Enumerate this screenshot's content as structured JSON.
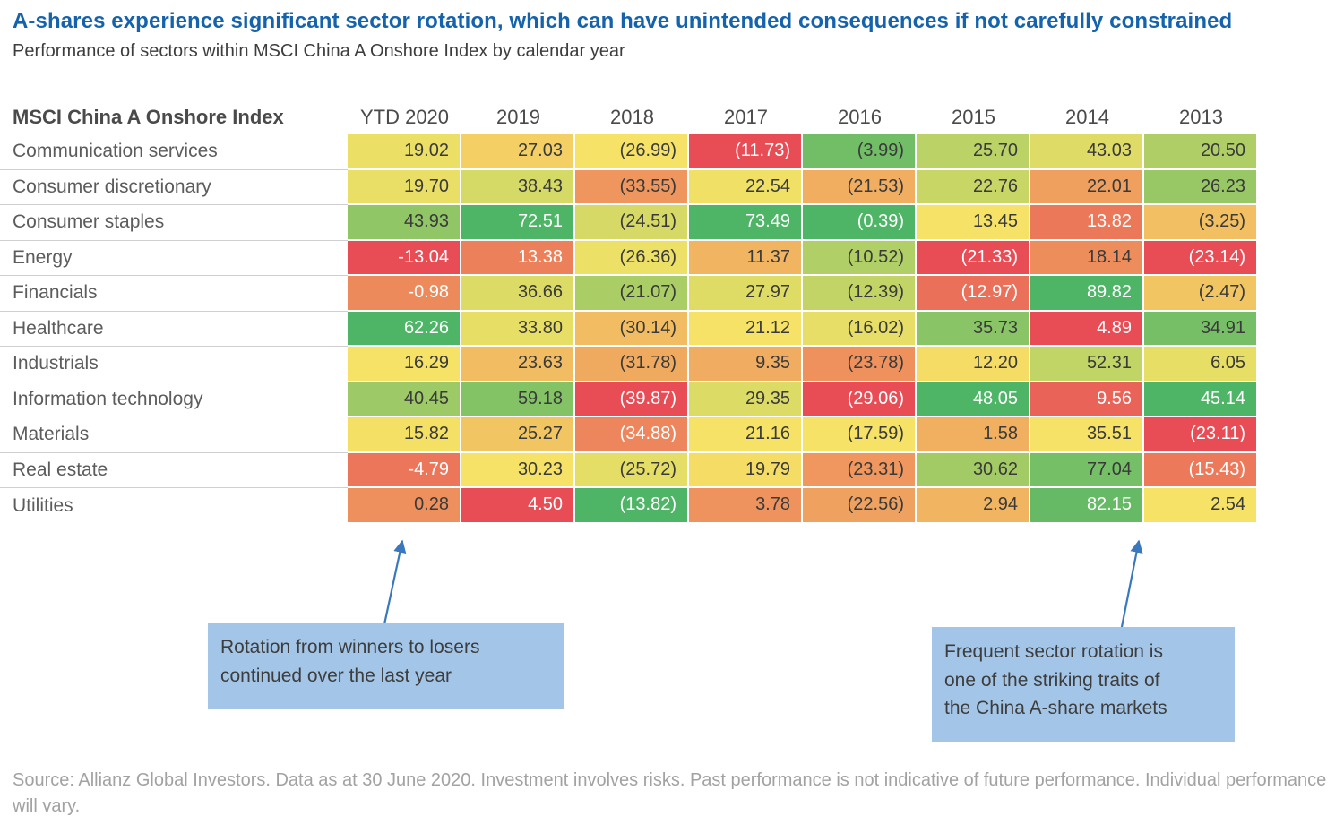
{
  "page": {
    "title": "A-shares experience significant sector rotation, which can have unintended consequences if not carefully constrained",
    "subtitle": "Performance of sectors within MSCI China A Onshore Index by calendar year",
    "footer": "Source: Allianz Global Investors. Data as at 30 June 2020. Investment involves risks. Past performance is not indicative of future performance. Individual performance will vary."
  },
  "annotations": [
    {
      "text": "Rotation from winners to losers\ncontinued over the last year",
      "points_to": "YTD 2020 column"
    },
    {
      "text": "Frequent sector rotation is\none of the striking traits of\nthe China A-share markets",
      "points_to": "2014 column"
    }
  ],
  "colors": {
    "title": "#1563ac",
    "subtitle_text": "#3d3d3d",
    "header_text": "#4a4a4a",
    "row_label_text": "#5c5c5c",
    "cell_text_dark": "#3a3a3a",
    "cell_text_light": "#ffffff",
    "separator": "#cfcfcf",
    "annotation_bg": "#a3c6e8",
    "annotation_text": "#3d3d3d",
    "arrow": "#3a78bd",
    "footer_text": "#a2a2a2",
    "scale_min": "#e84c55",
    "scale_mid": "#f5e266",
    "scale_max": "#4eb466"
  },
  "chart_data": {
    "type": "heatmap",
    "title": "Performance of sectors within MSCI China A Onshore Index by calendar year",
    "corner_label": "MSCI China A Onshore Index",
    "columns": [
      "YTD 2020",
      "2019",
      "2018",
      "2017",
      "2016",
      "2015",
      "2014",
      "2013"
    ],
    "negative_display": [
      "minus",
      "parens",
      "parens",
      "parens",
      "parens",
      "parens",
      "parens",
      "parens"
    ],
    "rows": [
      "Communication services",
      "Consumer discretionary",
      "Consumer staples",
      "Energy",
      "Financials",
      "Healthcare",
      "Industrials",
      "Information technology",
      "Materials",
      "Real estate",
      "Utilities"
    ],
    "values": [
      [
        19.02,
        27.03,
        -26.99,
        -11.73,
        -3.99,
        25.7,
        43.03,
        20.5
      ],
      [
        19.7,
        38.43,
        -33.55,
        22.54,
        -21.53,
        22.76,
        22.01,
        26.23
      ],
      [
        43.93,
        72.51,
        -24.51,
        73.49,
        -0.39,
        13.45,
        13.82,
        -3.25
      ],
      [
        -13.04,
        13.38,
        -26.36,
        11.37,
        -10.52,
        -21.33,
        18.14,
        -23.14
      ],
      [
        -0.98,
        36.66,
        -21.07,
        27.97,
        -12.39,
        -12.97,
        89.82,
        -2.47
      ],
      [
        62.26,
        33.8,
        -30.14,
        21.12,
        -16.02,
        35.73,
        4.89,
        34.91
      ],
      [
        16.29,
        23.63,
        -31.78,
        9.35,
        -23.78,
        12.2,
        52.31,
        6.05
      ],
      [
        40.45,
        59.18,
        -39.87,
        29.35,
        -29.06,
        48.05,
        9.56,
        45.14
      ],
      [
        15.82,
        25.27,
        -34.88,
        21.16,
        -17.59,
        1.58,
        35.51,
        -23.11
      ],
      [
        -4.79,
        30.23,
        -25.72,
        19.79,
        -23.31,
        30.62,
        77.04,
        -15.43
      ],
      [
        0.28,
        4.5,
        -13.82,
        3.78,
        -22.56,
        2.94,
        82.15,
        2.54
      ]
    ],
    "color_mapping": "per-column 3-color scale: column minimum = scale_min (red), column median = scale_mid (yellow), column maximum = scale_max (green); extreme cells rendered with white text"
  }
}
